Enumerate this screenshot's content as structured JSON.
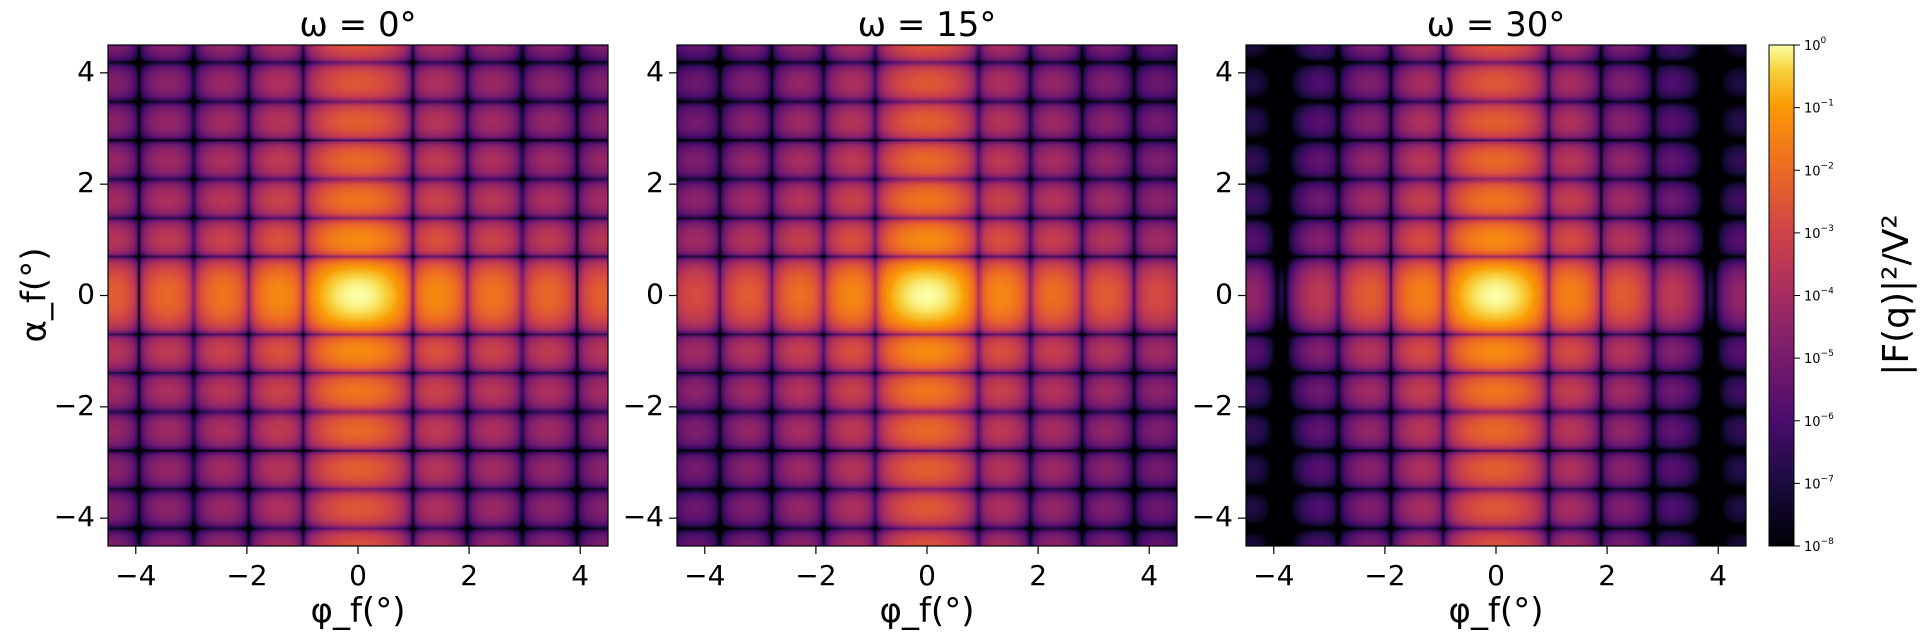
{
  "chart_data": {
    "type": "heatmap",
    "panels": [
      {
        "title": "ω = 0°",
        "omega": 0,
        "xlabel": "φ_f(°)",
        "ylabel": "α_f(°)"
      },
      {
        "title": "ω = 15°",
        "omega": 15,
        "xlabel": "φ_f(°)",
        "ylabel": ""
      },
      {
        "title": "ω = 30°",
        "omega": 30,
        "xlabel": "φ_f(°)",
        "ylabel": ""
      }
    ],
    "xlim": [
      -4.5,
      4.5
    ],
    "ylim": [
      -4.5,
      4.5
    ],
    "xticks": [
      -4,
      -2,
      0,
      2,
      4
    ],
    "yticks": [
      -4,
      -2,
      0,
      2,
      4
    ],
    "tick_labels": [
      "−4",
      "−2",
      "0",
      "2",
      "4"
    ],
    "colorbar": {
      "label": "|F(q)|²/V²",
      "scale": "log",
      "range": [
        1e-08,
        1
      ],
      "ticks": [
        {
          "base": "10",
          "exp": "−8",
          "value": 1e-08
        },
        {
          "base": "10",
          "exp": "−7",
          "value": 1e-07
        },
        {
          "base": "10",
          "exp": "−6",
          "value": 1e-06
        },
        {
          "base": "10",
          "exp": "−5",
          "value": 1e-05
        },
        {
          "base": "10",
          "exp": "−4",
          "value": 0.0001
        },
        {
          "base": "10",
          "exp": "−3",
          "value": 0.001
        },
        {
          "base": "10",
          "exp": "−2",
          "value": 0.01
        },
        {
          "base": "10",
          "exp": "−1",
          "value": 0.1
        },
        {
          "base": "10",
          "exp": "0",
          "value": 1
        }
      ]
    },
    "colormap": "inferno",
    "grid": false
  }
}
